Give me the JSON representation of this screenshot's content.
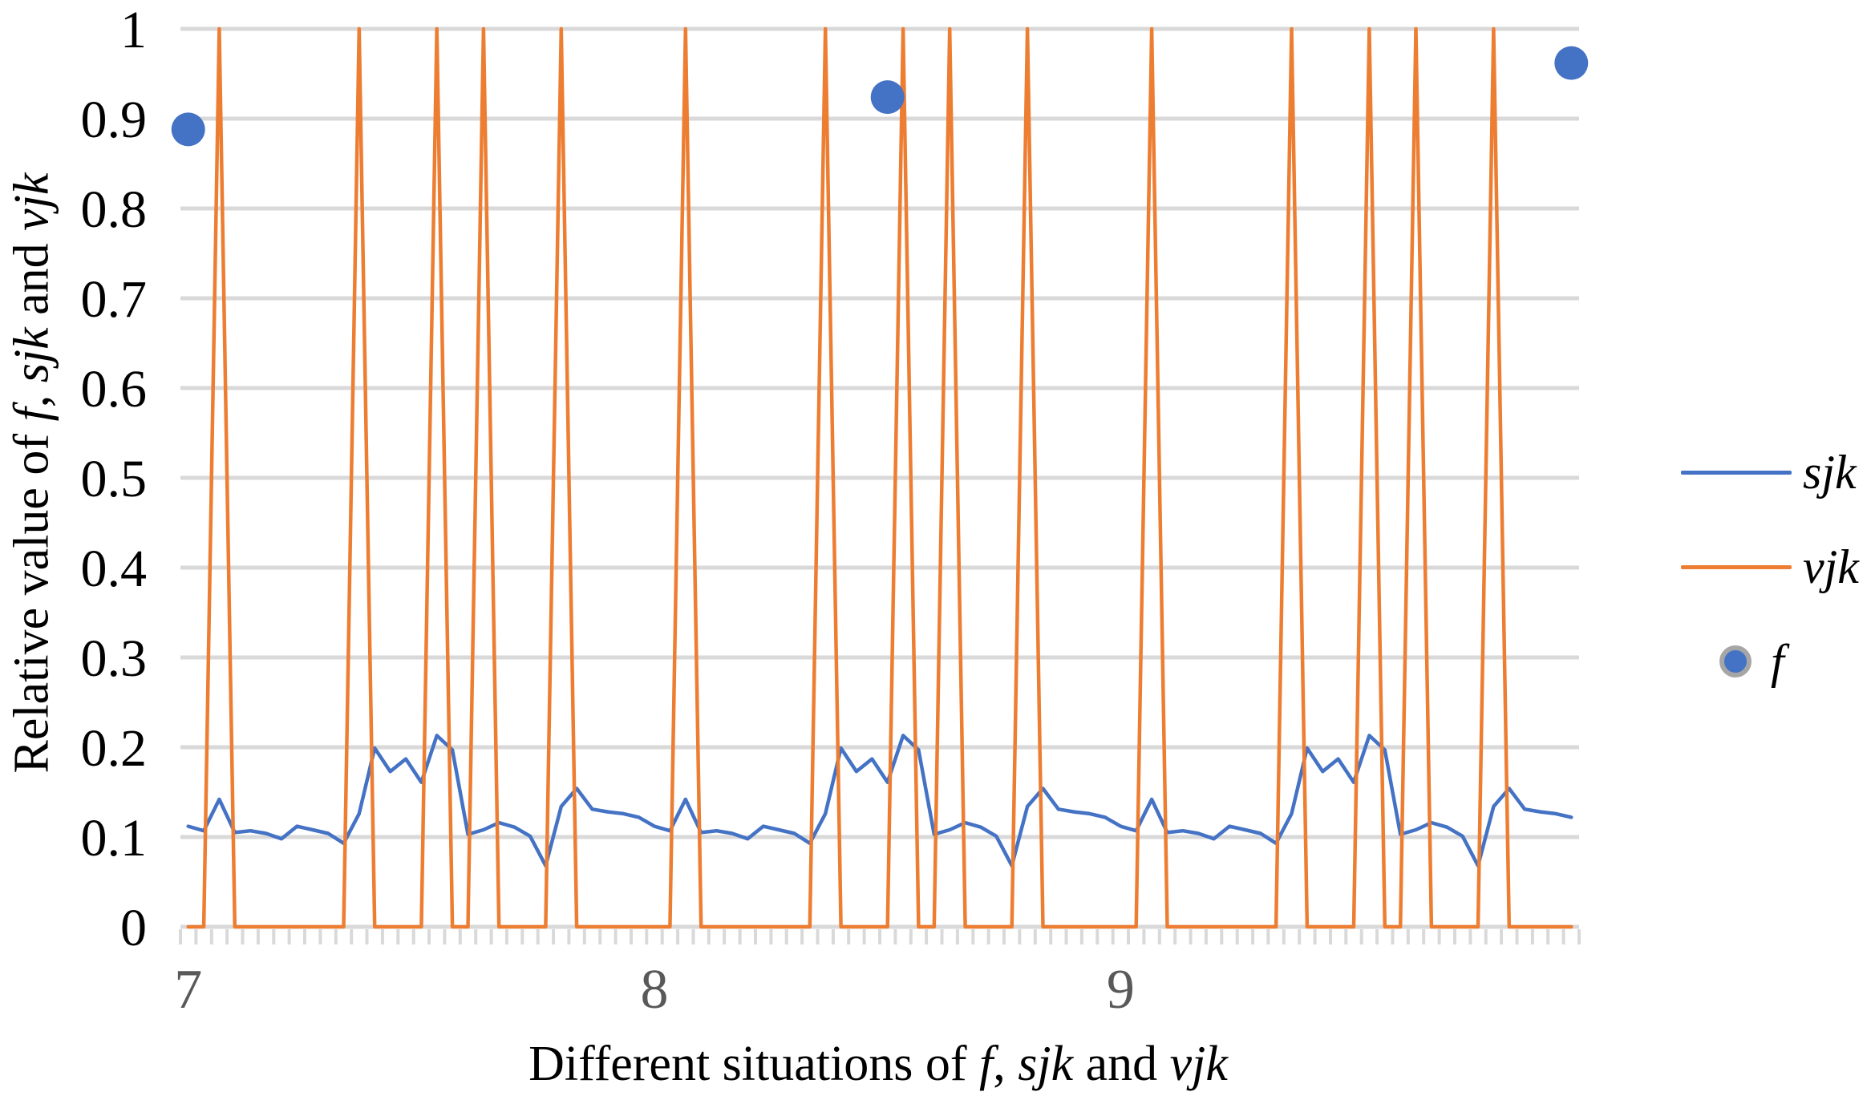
{
  "chart_data": {
    "type": "line",
    "description": "Combo chart: two line series (sjk, vjk) over 90 situations from 7 to 10, plus scatter series f with 3 points",
    "n_points": 90,
    "x_start": 7,
    "x_step": 0.0333,
    "x": [
      7.0,
      7.033,
      7.067,
      7.1,
      7.133,
      7.167,
      7.2,
      7.233,
      7.267,
      7.3,
      7.333,
      7.367,
      7.4,
      7.433,
      7.467,
      7.5,
      7.533,
      7.567,
      7.6,
      7.633,
      7.667,
      7.7,
      7.733,
      7.767,
      7.8,
      7.833,
      7.867,
      7.9,
      7.933,
      7.967,
      8.0,
      8.033,
      8.067,
      8.1,
      8.133,
      8.167,
      8.2,
      8.233,
      8.267,
      8.3,
      8.333,
      8.367,
      8.4,
      8.433,
      8.467,
      8.5,
      8.533,
      8.567,
      8.6,
      8.633,
      8.667,
      8.7,
      8.733,
      8.767,
      8.8,
      8.833,
      8.867,
      8.9,
      8.933,
      8.967,
      9.0,
      9.033,
      9.067,
      9.1,
      9.133,
      9.167,
      9.2,
      9.233,
      9.267,
      9.3,
      9.333,
      9.367,
      9.4,
      9.433,
      9.467,
      9.5,
      9.533,
      9.567,
      9.6,
      9.633,
      9.667,
      9.7,
      9.733,
      9.767,
      9.8,
      9.833,
      9.867,
      9.9,
      9.933,
      9.967
    ],
    "series": [
      {
        "name": "sjk",
        "type": "line",
        "color": "#4472C4",
        "values": [
          0.112,
          0.107,
          0.142,
          0.105,
          0.107,
          0.104,
          0.098,
          0.112,
          0.108,
          0.104,
          0.093,
          0.126,
          0.199,
          0.173,
          0.187,
          0.161,
          0.213,
          0.197,
          0.103,
          0.108,
          0.116,
          0.111,
          0.101,
          0.068,
          0.134,
          0.154,
          0.131,
          0.128,
          0.126,
          0.122,
          0.112,
          0.107,
          0.142,
          0.105,
          0.107,
          0.104,
          0.098,
          0.112,
          0.108,
          0.104,
          0.093,
          0.126,
          0.199,
          0.173,
          0.187,
          0.161,
          0.213,
          0.197,
          0.103,
          0.108,
          0.116,
          0.111,
          0.101,
          0.068,
          0.134,
          0.154,
          0.131,
          0.128,
          0.126,
          0.122,
          0.112,
          0.107,
          0.142,
          0.105,
          0.107,
          0.104,
          0.098,
          0.112,
          0.108,
          0.104,
          0.093,
          0.126,
          0.199,
          0.173,
          0.187,
          0.161,
          0.213,
          0.197,
          0.103,
          0.108,
          0.116,
          0.111,
          0.101,
          0.068,
          0.134,
          0.154,
          0.131,
          0.128,
          0.126,
          0.122
        ]
      },
      {
        "name": "vjk",
        "type": "line",
        "color": "#ED7D31",
        "values": [
          0,
          0,
          1,
          0,
          0,
          0,
          0,
          0,
          0,
          0,
          0,
          1,
          0,
          0,
          0,
          0,
          1,
          0,
          0,
          1,
          0,
          0,
          0,
          0,
          1,
          0,
          0,
          0,
          0,
          0,
          0,
          0,
          1,
          0,
          0,
          0,
          0,
          0,
          0,
          0,
          0,
          1,
          0,
          0,
          0,
          0,
          1,
          0,
          0,
          1,
          0,
          0,
          0,
          0,
          1,
          0,
          0,
          0,
          0,
          0,
          0,
          0,
          1,
          0,
          0,
          0,
          0,
          0,
          0,
          0,
          0,
          1,
          0,
          0,
          0,
          0,
          1,
          0,
          0,
          1,
          0,
          0,
          0,
          0,
          1,
          0,
          0,
          0,
          0,
          0
        ]
      },
      {
        "name": "f",
        "type": "scatter",
        "color": "#4472C4",
        "points": [
          {
            "index": 0,
            "x": 7.0,
            "y": 0.888
          },
          {
            "index": 45,
            "x": 8.5,
            "y": 0.924
          },
          {
            "index": 89,
            "x": 9.967,
            "y": 0.962
          }
        ]
      }
    ],
    "ylim": [
      0,
      1
    ],
    "y_ticks": [
      0,
      0.1,
      0.2,
      0.3,
      0.4,
      0.5,
      0.6,
      0.7,
      0.8,
      0.9,
      1
    ],
    "y_tick_labels": [
      "0",
      "0.1",
      "0.2",
      "0.3",
      "0.4",
      "0.5",
      "0.6",
      "0.7",
      "0.8",
      "0.9",
      "1"
    ],
    "x_tick_labels": [
      {
        "label": "7",
        "index": 0
      },
      {
        "label": "8",
        "index": 30
      },
      {
        "label": "9",
        "index": 60
      }
    ],
    "grid": true,
    "legend_position": "right",
    "xlabel": "Different situations of f, sjk and vjk",
    "ylabel": "Relative value of f, sjk and vjk",
    "xlabel_segments": [
      {
        "text": "Different situations of ",
        "italic": false
      },
      {
        "text": "f",
        "italic": true
      },
      {
        "text": ", ",
        "italic": false
      },
      {
        "text": "sjk",
        "italic": true
      },
      {
        "text": " and ",
        "italic": false
      },
      {
        "text": "vjk",
        "italic": true
      }
    ],
    "ylabel_segments": [
      {
        "text": "Relative value of ",
        "italic": false
      },
      {
        "text": "f",
        "italic": true
      },
      {
        "text": ", ",
        "italic": false
      },
      {
        "text": "sjk",
        "italic": true
      },
      {
        "text": " and ",
        "italic": false
      },
      {
        "text": "vjk",
        "italic": true
      }
    ],
    "legend": [
      {
        "label": "sjk",
        "marker": "line",
        "color": "#4472C4"
      },
      {
        "label": "vjk",
        "marker": "line",
        "color": "#ED7D31"
      },
      {
        "label": "f",
        "marker": "circle",
        "color": "#4472C4",
        "ring_color": "#A6A6A6"
      }
    ],
    "colors": {
      "grid": "#D9D9D9",
      "tick": "#D9D9D9",
      "x_tick_label": "#595959",
      "y_tick_label": "#000000",
      "axis_title": "#000000",
      "sjk": "#4472C4",
      "vjk": "#ED7D31",
      "f_fill": "#4472C4",
      "f_legend_ring": "#A6A6A6"
    }
  }
}
